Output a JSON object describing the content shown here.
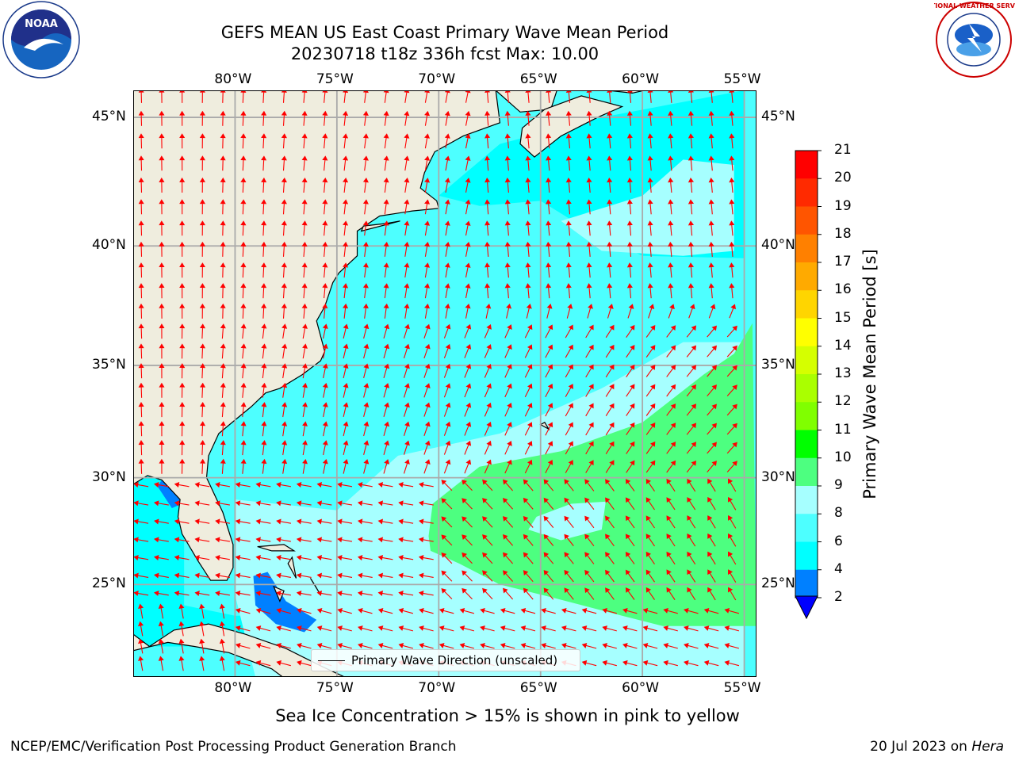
{
  "header": {
    "title_line1": "GEFS MEAN US East Coast Primary Wave Mean Period",
    "title_line2": "20230718 t18z 336h fcst   Max: 10.00"
  },
  "logos": {
    "left": "NOAA",
    "right": "NATIONAL WEATHER SERVICE"
  },
  "map": {
    "lon_ticks": [
      "80°W",
      "75°W",
      "70°W",
      "65°W",
      "60°W",
      "55°W"
    ],
    "lat_ticks": [
      "45°N",
      "40°N",
      "35°N",
      "30°N",
      "25°N"
    ],
    "lon_range": [
      -85,
      -54.5
    ],
    "lat_range": [
      20.5,
      46
    ],
    "colors": {
      "land": "#efedde",
      "ocean_4_6": "#00ffff",
      "ocean_6_8": "#4dffff",
      "ocean_8_9": "#a6ffff",
      "ocean_9_10": "#4dff80",
      "ocean_2_4": "#0080ff",
      "grid": "#aaaaaa",
      "arrow": "#ff0000"
    },
    "legend_label": "Primary Wave Direction (unscaled)"
  },
  "colorbar": {
    "label": "Primary Wave Mean Period [s]",
    "ticks": [
      "21",
      "20",
      "19",
      "18",
      "17",
      "16",
      "15",
      "14",
      "13",
      "12",
      "11",
      "10",
      "9",
      "8",
      "6",
      "4",
      "2"
    ],
    "colors": [
      "#ff0000",
      "#ff2a00",
      "#ff5500",
      "#ff8000",
      "#ffaa00",
      "#ffd500",
      "#ffff00",
      "#d5ff00",
      "#aaff00",
      "#80ff00",
      "#00ff00",
      "#4dff80",
      "#a6ffff",
      "#4dffff",
      "#00ffff",
      "#0080ff"
    ],
    "extend_color": "#0000ff"
  },
  "footer": {
    "ice_note": "Sea Ice Concentration > 15% is shown in pink to yellow",
    "credit": "NCEP/EMC/Verification Post Processing Product Generation Branch",
    "date": "20 Jul 2023 on ",
    "machine": "Hera"
  }
}
